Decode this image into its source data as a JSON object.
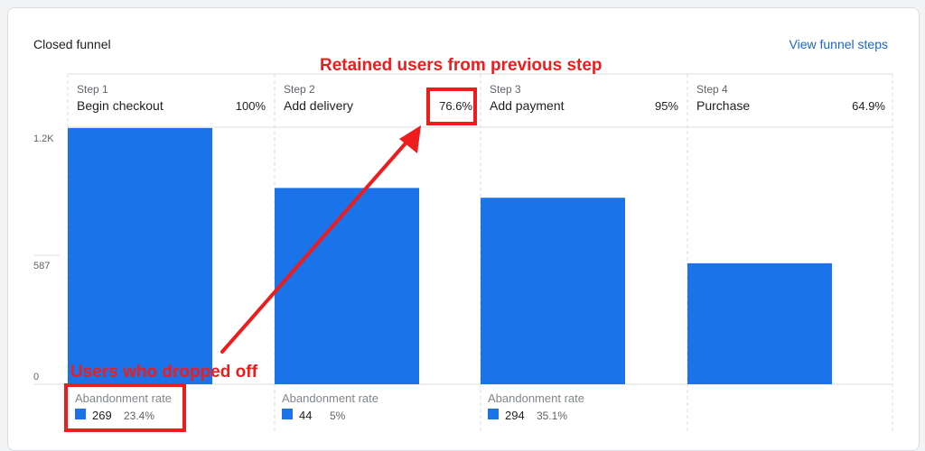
{
  "header": {
    "title": "Closed funnel",
    "link": "View funnel steps"
  },
  "annotations": {
    "retained": "Retained users from previous step",
    "dropped": "Users who dropped off"
  },
  "colors": {
    "bar": "#1a73e8",
    "annotation": "#ee1c1c",
    "link": "#1967d2"
  },
  "chart_data": {
    "type": "bar",
    "categories": [
      "Begin checkout",
      "Add delivery",
      "Add payment",
      "Purchase"
    ],
    "step_labels": [
      "Step 1",
      "Step 2",
      "Step 3",
      "Step 4"
    ],
    "values": [
      1150,
      881,
      837,
      543
    ],
    "completion_rates": [
      "100%",
      "76.6%",
      "95%",
      "64.9%"
    ],
    "y_ticks": [
      "1.2K",
      "587",
      "0"
    ],
    "ylim": [
      0,
      1174
    ],
    "abandonment": [
      {
        "label": "Abandonment rate",
        "count": "269",
        "rate": "23.4%"
      },
      {
        "label": "Abandonment rate",
        "count": "44",
        "rate": "5%"
      },
      {
        "label": "Abandonment rate",
        "count": "294",
        "rate": "35.1%"
      }
    ]
  }
}
